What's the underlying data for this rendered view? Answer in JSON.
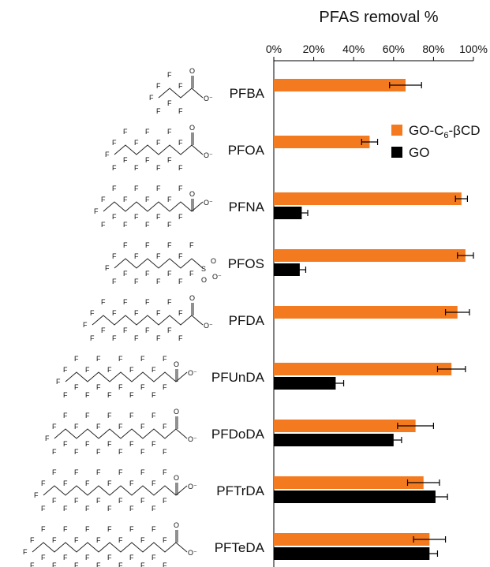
{
  "chart_data": {
    "type": "bar",
    "orientation": "horizontal",
    "title": "PFAS removal %",
    "xlim": [
      0,
      100
    ],
    "x_ticks": [
      "0%",
      "20%",
      "40%",
      "60%",
      "80%",
      "100%"
    ],
    "x_tick_values": [
      0,
      20,
      40,
      60,
      80,
      100
    ],
    "categories": [
      "PFBA",
      "PFOA",
      "PFNA",
      "PFOS",
      "PFDA",
      "PFUnDA",
      "PFDoDA",
      "PFTrDA",
      "PFTeDA"
    ],
    "series": [
      {
        "name": "GO-C6-βCD",
        "color": "#f47a1f",
        "values": [
          66,
          48,
          94,
          96,
          92,
          89,
          71,
          75,
          78
        ],
        "errors": [
          8,
          4,
          3,
          4,
          6,
          7,
          9,
          8,
          8
        ]
      },
      {
        "name": "GO",
        "color": "#000000",
        "values": [
          null,
          null,
          14,
          13,
          null,
          31,
          60,
          81,
          78
        ],
        "errors": [
          null,
          null,
          3,
          3,
          null,
          4,
          4,
          6,
          4
        ]
      }
    ],
    "legend": {
      "position": "right",
      "entries": [
        {
          "text_main": "GO-C",
          "subscript": "6",
          "text_tail": "-βCD",
          "color": "#f47a1f"
        },
        {
          "text_main": "GO",
          "subscript": "",
          "text_tail": "",
          "color": "#000000"
        }
      ]
    },
    "structures": [
      {
        "carbons": 4,
        "head": "carboxylate"
      },
      {
        "carbons": 8,
        "head": "carboxylate"
      },
      {
        "carbons": 9,
        "head": "carboxylate"
      },
      {
        "carbons": 8,
        "head": "sulfonate"
      },
      {
        "carbons": 10,
        "head": "carboxylate"
      },
      {
        "carbons": 11,
        "head": "carboxylate"
      },
      {
        "carbons": 12,
        "head": "carboxylate"
      },
      {
        "carbons": 13,
        "head": "carboxylate"
      },
      {
        "carbons": 14,
        "head": "carboxylate"
      }
    ],
    "grid": false
  }
}
